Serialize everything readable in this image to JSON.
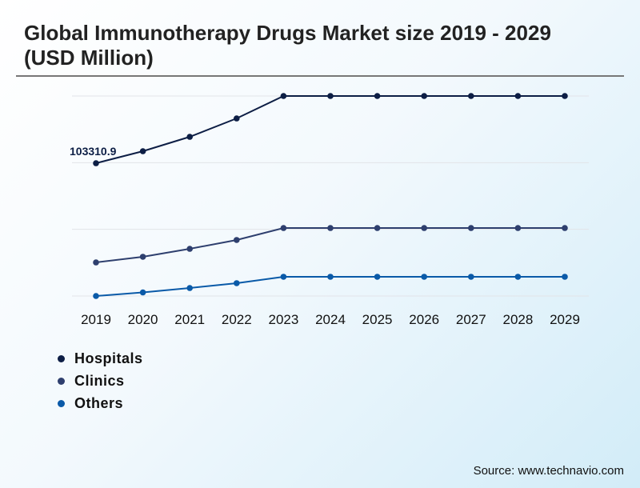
{
  "title": "Global Immunotherapy Drugs Market size 2019 - 2029 (USD Million)",
  "source": "Source: www.technavio.com",
  "chart_data": {
    "type": "line",
    "categories": [
      "2019",
      "2020",
      "2021",
      "2022",
      "2023",
      "2024",
      "2025",
      "2026",
      "2027",
      "2028",
      "2029"
    ],
    "series": [
      {
        "name": "Hospitals",
        "color": "#0d1e45",
        "values": [
          103310.9,
          112650,
          123850,
          138170,
          155600,
          155600,
          155600,
          155600,
          155600,
          155600,
          155600
        ]
      },
      {
        "name": "Clinics",
        "color": "#2e3f6e",
        "values": [
          26140,
          30500,
          36720,
          43570,
          52900,
          52900,
          52900,
          52900,
          52900,
          52900,
          52900
        ]
      },
      {
        "name": "Others",
        "color": "#0a5aa8",
        "values": [
          0,
          2800,
          6220,
          9960,
          14940,
          14940,
          14940,
          14940,
          14940,
          14940,
          14940
        ]
      }
    ],
    "annotations": [
      {
        "series": "Hospitals",
        "category": "2019",
        "text": "103310.9"
      }
    ],
    "ylim": [
      0,
      155600
    ],
    "gridlines": 4,
    "grid": true,
    "y_axis_labels": false,
    "legend_placement": "bottom-left"
  }
}
